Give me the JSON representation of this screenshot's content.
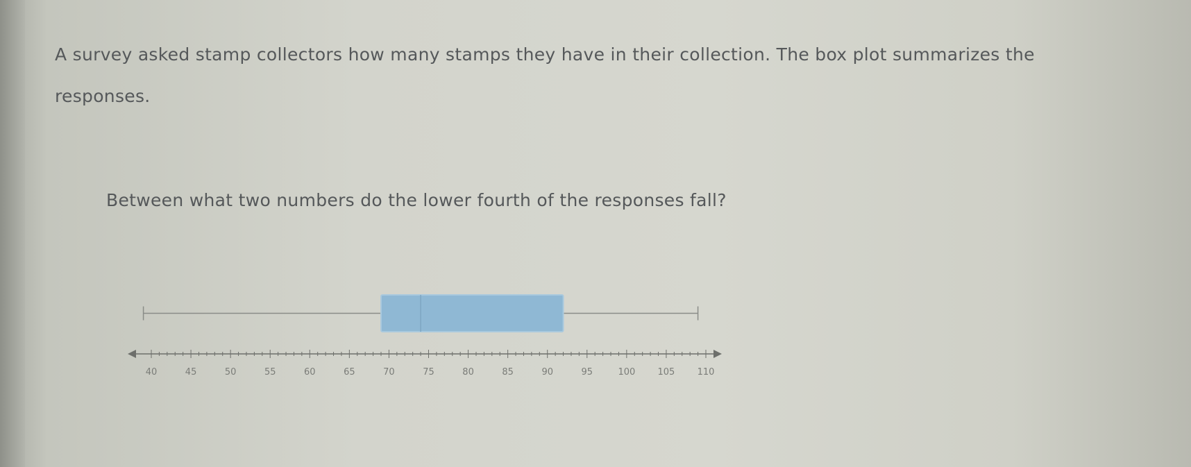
{
  "problem": {
    "stem_line1": "A survey asked stamp collectors how many stamps they have in their collection. The box plot summarizes the",
    "stem_line2": "responses.",
    "question": "Between what two numbers do the lower fourth of the responses fall?"
  },
  "chart_data": {
    "type": "box",
    "title": "",
    "xlabel": "",
    "xlim": [
      40,
      110
    ],
    "ticks": [
      "40",
      "45",
      "50",
      "55",
      "60",
      "65",
      "70",
      "75",
      "80",
      "85",
      "90",
      "95",
      "100",
      "105",
      "110"
    ],
    "box": {
      "min": 39,
      "q1": 69,
      "median": 74,
      "q3": 92,
      "max": 109
    },
    "colors": {
      "box_fill": "#8fb8d4",
      "box_stroke": "#a9c9de",
      "whisker": "#8a8c88",
      "axis": "#6d6f6b"
    }
  }
}
